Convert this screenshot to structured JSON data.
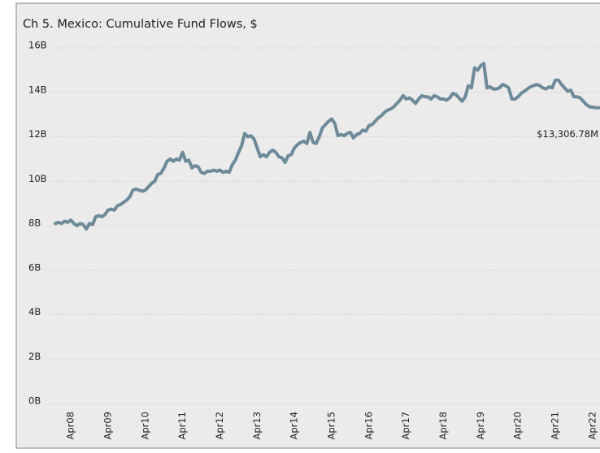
{
  "chart_data": {
    "type": "line",
    "title": "Ch 5. Mexico:  Cumulative Fund Flows, $",
    "categories": [
      null,
      null,
      null,
      null,
      null,
      "Apr08",
      null,
      null,
      null,
      null,
      null,
      null,
      null,
      null,
      null,
      null,
      null,
      "Apr09",
      null,
      null,
      null,
      null,
      null,
      null,
      null,
      null,
      null,
      null,
      null,
      "Apr10",
      null,
      null,
      null,
      null,
      null,
      null,
      null,
      null,
      null,
      null,
      null,
      "Apr11",
      null,
      null,
      null,
      null,
      null,
      null,
      null,
      null,
      null,
      null,
      null,
      "Apr12",
      null,
      null,
      null,
      null,
      null,
      null,
      null,
      null,
      null,
      null,
      null,
      "Apr13",
      null,
      null,
      null,
      null,
      null,
      null,
      null,
      null,
      null,
      null,
      null,
      "Apr14",
      null,
      null,
      null,
      null,
      null,
      null,
      null,
      null,
      null,
      null,
      null,
      "Apr15",
      null,
      null,
      null,
      null,
      null,
      null,
      null,
      null,
      null,
      null,
      null,
      "Apr16",
      null,
      null,
      null,
      null,
      null,
      null,
      null,
      null,
      null,
      null,
      null,
      "Apr17",
      null,
      null,
      null,
      null,
      null,
      null,
      null,
      null,
      null,
      null,
      null,
      "Apr18",
      null,
      null,
      null,
      null,
      null,
      null,
      null,
      null,
      null,
      null,
      null,
      "Apr19",
      null,
      null,
      null,
      null,
      null,
      null,
      null,
      null,
      null,
      null,
      null,
      "Apr20",
      null,
      null,
      null,
      null,
      null,
      null,
      null,
      null,
      null,
      null,
      null,
      "Apr21",
      null,
      null,
      null,
      null,
      null,
      null,
      null,
      null,
      null,
      null,
      null,
      "Apr22",
      null,
      null
    ],
    "series": [
      {
        "name": "Cumulative Fund Flows",
        "color": "#6e8a99",
        "values": [
          8.1,
          8.15,
          8.1,
          8.2,
          8.15,
          8.25,
          8.1,
          8.0,
          8.1,
          8.05,
          7.85,
          8.1,
          8.05,
          8.4,
          8.45,
          8.4,
          8.5,
          8.7,
          8.75,
          8.7,
          8.9,
          8.95,
          9.05,
          9.15,
          9.3,
          9.6,
          9.65,
          9.6,
          9.55,
          9.6,
          9.75,
          9.9,
          10.0,
          10.3,
          10.35,
          10.6,
          10.9,
          11.0,
          10.9,
          11.0,
          10.95,
          11.3,
          10.9,
          10.95,
          10.6,
          10.7,
          10.65,
          10.4,
          10.35,
          10.45,
          10.45,
          10.5,
          10.45,
          10.5,
          10.4,
          10.45,
          10.4,
          10.75,
          10.95,
          11.3,
          11.6,
          12.15,
          12.0,
          12.05,
          11.9,
          11.5,
          11.1,
          11.2,
          11.1,
          11.3,
          11.4,
          11.3,
          11.1,
          11.05,
          10.85,
          11.15,
          11.2,
          11.5,
          11.65,
          11.75,
          11.8,
          11.7,
          12.2,
          11.75,
          11.7,
          12.0,
          12.4,
          12.55,
          12.7,
          12.8,
          12.6,
          12.05,
          12.1,
          12.05,
          12.15,
          12.2,
          11.95,
          12.1,
          12.15,
          12.3,
          12.25,
          12.5,
          12.55,
          12.7,
          12.85,
          12.95,
          13.1,
          13.2,
          13.25,
          13.35,
          13.5,
          13.65,
          13.85,
          13.7,
          13.75,
          13.65,
          13.5,
          13.7,
          13.85,
          13.8,
          13.8,
          13.7,
          13.85,
          13.8,
          13.7,
          13.7,
          13.65,
          13.75,
          13.95,
          13.9,
          13.75,
          13.6,
          13.8,
          14.3,
          14.2,
          15.1,
          15.0,
          15.2,
          15.3,
          14.2,
          14.25,
          14.15,
          14.15,
          14.2,
          14.35,
          14.3,
          14.2,
          13.7,
          13.7,
          13.8,
          13.95,
          14.05,
          14.15,
          14.25,
          14.3,
          14.35,
          14.3,
          14.2,
          14.15,
          14.25,
          14.2,
          14.55,
          14.55,
          14.35,
          14.2,
          14.05,
          14.1,
          13.8,
          13.8,
          13.75,
          13.6,
          13.45,
          13.35,
          13.33,
          13.31,
          13.30678
        ]
      }
    ],
    "annotation": "$13,306.78M",
    "ylim": [
      0,
      16
    ],
    "yticks": [
      {
        "value": 0,
        "label": "0B"
      },
      {
        "value": 2,
        "label": "2B"
      },
      {
        "value": 4,
        "label": "4B"
      },
      {
        "value": 6,
        "label": "6B"
      },
      {
        "value": 8,
        "label": "8B"
      },
      {
        "value": 10,
        "label": "10B"
      },
      {
        "value": 12,
        "label": "12B"
      },
      {
        "value": 14,
        "label": "14B"
      },
      {
        "value": 16,
        "label": "16B"
      }
    ],
    "grid": true
  }
}
